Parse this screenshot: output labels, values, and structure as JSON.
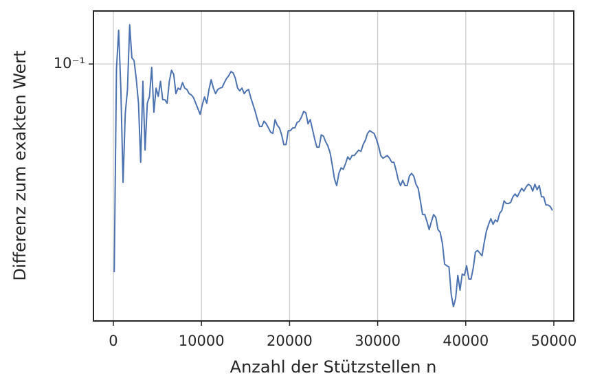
{
  "chart_data": {
    "type": "line",
    "xlabel": "Anzahl der Stützstellen n",
    "ylabel": "Differenz zum exakten Wert",
    "log_y": true,
    "grid": true,
    "xlim": [
      -2262,
      52262
    ],
    "ylim": [
      0.0179,
      0.1426
    ],
    "xticks": [
      0,
      10000,
      20000,
      30000,
      40000,
      50000
    ],
    "yticks": [
      {
        "value": 0.1,
        "label": "10⁻¹"
      }
    ],
    "x": [
      100,
      350,
      600,
      850,
      1100,
      1350,
      1600,
      1850,
      2100,
      2350,
      2600,
      2850,
      3100,
      3350,
      3600,
      3850,
      4100,
      4350,
      4600,
      4850,
      5100,
      5350,
      5600,
      5850,
      6100,
      6350,
      6600,
      6850,
      7100,
      7350,
      7600,
      7850,
      8100,
      8350,
      8600,
      8850,
      9100,
      9350,
      9600,
      9850,
      10100,
      10350,
      10600,
      10850,
      11100,
      11350,
      11600,
      11850,
      12100,
      12350,
      12600,
      12850,
      13100,
      13350,
      13600,
      13850,
      14100,
      14350,
      14600,
      14850,
      15100,
      15350,
      15600,
      15850,
      16100,
      16350,
      16600,
      16850,
      17100,
      17350,
      17600,
      17850,
      18100,
      18350,
      18600,
      18850,
      19100,
      19350,
      19600,
      19850,
      20100,
      20350,
      20600,
      20850,
      21100,
      21350,
      21600,
      21850,
      22100,
      22350,
      22600,
      22850,
      23100,
      23350,
      23600,
      23850,
      24100,
      24350,
      24600,
      24850,
      25100,
      25350,
      25600,
      25850,
      26100,
      26350,
      26600,
      26850,
      27100,
      27350,
      27600,
      27850,
      28100,
      28350,
      28600,
      28850,
      29100,
      29350,
      29600,
      29850,
      30100,
      30350,
      30600,
      30850,
      31100,
      31350,
      31600,
      31850,
      32100,
      32350,
      32600,
      32850,
      33100,
      33350,
      33600,
      33850,
      34100,
      34350,
      34600,
      34850,
      35100,
      35350,
      35600,
      35850,
      36100,
      36350,
      36600,
      36850,
      37100,
      37350,
      37600,
      37850,
      38100,
      38350,
      38600,
      38850,
      39100,
      39350,
      39600,
      39850,
      40100,
      40350,
      40600,
      40850,
      41100,
      41350,
      41600,
      41850,
      42100,
      42350,
      42600,
      42850,
      43100,
      43350,
      43600,
      43850,
      44100,
      44350,
      44600,
      44850,
      45100,
      45350,
      45600,
      45850,
      46100,
      46350,
      46600,
      46850,
      47100,
      47350,
      47600,
      47850,
      48100,
      48350,
      48600,
      48850,
      49100,
      49350,
      49600,
      49850
    ],
    "series": [
      {
        "color": "#4c72b0",
        "values": [
          0.0248,
          0.0968,
          0.1253,
          0.0843,
          0.0453,
          0.0718,
          0.0843,
          0.13,
          0.1042,
          0.1023,
          0.0904,
          0.0769,
          0.0518,
          0.0891,
          0.0562,
          0.0769,
          0.0805,
          0.0977,
          0.0724,
          0.0851,
          0.0805,
          0.0891,
          0.0787,
          0.0787,
          0.0769,
          0.0891,
          0.0959,
          0.0933,
          0.082,
          0.0851,
          0.0843,
          0.0883,
          0.0851,
          0.0843,
          0.082,
          0.0813,
          0.0798,
          0.0769,
          0.0741,
          0.0714,
          0.0762,
          0.0802,
          0.0769,
          0.0843,
          0.09,
          0.0851,
          0.082,
          0.0843,
          0.0851,
          0.0855,
          0.0883,
          0.0908,
          0.0925,
          0.0951,
          0.0942,
          0.0908,
          0.0851,
          0.0836,
          0.0851,
          0.082,
          0.0836,
          0.0843,
          0.0798,
          0.0762,
          0.0728,
          0.0689,
          0.0658,
          0.0658,
          0.0682,
          0.067,
          0.0652,
          0.0634,
          0.0628,
          0.0689,
          0.0664,
          0.0652,
          0.0622,
          0.0583,
          0.0583,
          0.064,
          0.064,
          0.0652,
          0.0652,
          0.0676,
          0.0682,
          0.0701,
          0.0728,
          0.0721,
          0.067,
          0.0689,
          0.0646,
          0.0605,
          0.0573,
          0.0573,
          0.0622,
          0.0617,
          0.0594,
          0.0578,
          0.0552,
          0.0508,
          0.0463,
          0.0443,
          0.0481,
          0.0499,
          0.0494,
          0.0513,
          0.0537,
          0.0527,
          0.0542,
          0.0542,
          0.0552,
          0.0562,
          0.0557,
          0.0583,
          0.06,
          0.0628,
          0.064,
          0.0634,
          0.0628,
          0.0605,
          0.0578,
          0.0542,
          0.0532,
          0.0537,
          0.0542,
          0.0532,
          0.0518,
          0.0518,
          0.049,
          0.0459,
          0.0443,
          0.0459,
          0.0443,
          0.0443,
          0.0472,
          0.0481,
          0.0472,
          0.0447,
          0.0435,
          0.04,
          0.0365,
          0.0365,
          0.0348,
          0.033,
          0.0348,
          0.0365,
          0.0358,
          0.033,
          0.0324,
          0.0301,
          0.0262,
          0.0259,
          0.0257,
          0.0214,
          0.0197,
          0.0208,
          0.0243,
          0.022,
          0.0245,
          0.0243,
          0.0259,
          0.0237,
          0.0237,
          0.0255,
          0.0284,
          0.0287,
          0.0282,
          0.0277,
          0.0303,
          0.0327,
          0.0342,
          0.0355,
          0.0342,
          0.0352,
          0.0348,
          0.0368,
          0.0375,
          0.04,
          0.0393,
          0.0393,
          0.0396,
          0.0411,
          0.0419,
          0.0411,
          0.0423,
          0.0435,
          0.0427,
          0.0439,
          0.0447,
          0.0443,
          0.0427,
          0.0447,
          0.0431,
          0.0443,
          0.0411,
          0.0411,
          0.0389,
          0.0389,
          0.0385,
          0.0375
        ]
      }
    ]
  }
}
